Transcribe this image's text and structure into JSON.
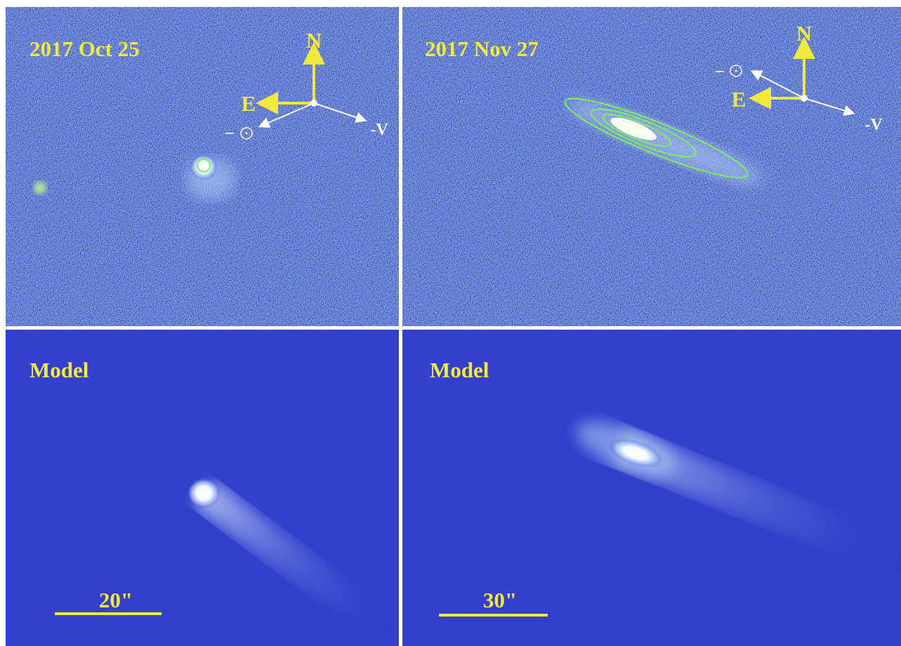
{
  "panels": [
    {
      "date": "2017 Oct 25",
      "north": "N",
      "east": "E",
      "sun": "−",
      "velocity": "-V"
    },
    {
      "date": "2017 Nov 27",
      "north": "N",
      "east": "E",
      "sun": "−",
      "velocity": "-V"
    }
  ],
  "models": [
    {
      "label": "Model",
      "scale": "20\""
    },
    {
      "label": "Model",
      "scale": "30\""
    }
  ]
}
